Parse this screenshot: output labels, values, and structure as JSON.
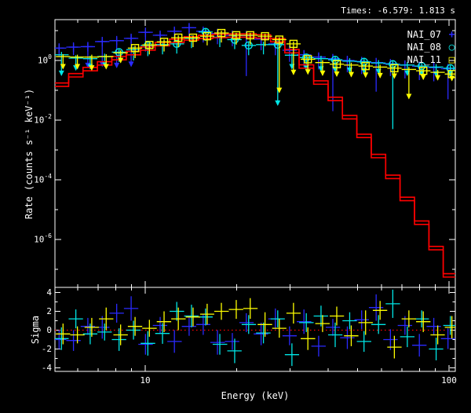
{
  "window": {
    "background": "#000000",
    "frame_color": "#ffffff"
  },
  "header": {
    "times_label": "Times: -6.579: 1.813 s"
  },
  "axes": {
    "x_title": "Energy (keV)",
    "rate_title": "Rate (counts s⁻¹ keV⁻¹)",
    "sigma_title": "Sigma",
    "x_major_tick_labels": [
      "10",
      "100"
    ],
    "rate_tick_exponents": [
      0,
      -2,
      -4,
      -6
    ],
    "sigma_tick_labels": [
      "4",
      "2",
      "0",
      "-2",
      "-4"
    ]
  },
  "legend": {
    "entries": [
      {
        "label": "NAI_07",
        "marker": "plus",
        "color": "#2a2aff"
      },
      {
        "label": "NAI_08",
        "marker": "circle",
        "color": "#00e6e6"
      },
      {
        "label": "NAI_11",
        "marker": "square",
        "color": "#ffff00"
      }
    ]
  },
  "chart_data": [
    {
      "type": "line",
      "title": "Times: -6.579: 1.813 s",
      "xlabel": "Energy (keV)",
      "ylabel": "Rate (counts s-1 keV-1)",
      "xscale": "log",
      "yscale": "log",
      "xlim": [
        5.0,
        105
      ],
      "ylim": [
        2.5e-08,
        23
      ],
      "x_major_ticks": [
        10,
        100
      ],
      "x_minor_ticks": [
        6,
        7,
        8,
        9,
        20,
        30,
        40,
        50,
        60,
        70,
        80,
        90
      ],
      "y_labeled_exponents": [
        0,
        -2,
        -4,
        -6
      ],
      "y_all_exponents": [
        1,
        0,
        -1,
        -2,
        -3,
        -4,
        -5,
        -6,
        -7
      ],
      "grid": false,
      "legend_position": "top-right",
      "energies_keV": [
        5.3,
        5.91,
        6.59,
        7.35,
        8.2,
        9.15,
        10.2,
        11.4,
        12.7,
        14.2,
        15.8,
        17.6,
        19.7,
        21.9,
        24.5,
        27.3,
        30.4,
        33.9,
        37.9,
        42.2,
        47.1,
        52.5,
        58.6,
        65.3,
        72.9,
        81.3,
        90.7,
        101
      ],
      "model": {
        "name": "folded-model",
        "color": "#ff0000",
        "values": [
          0.135,
          0.28,
          0.45,
          0.7,
          1.05,
          1.55,
          2.2,
          3.1,
          4.0,
          4.8,
          5.4,
          5.8,
          6.0,
          6.0,
          5.6,
          4.2,
          1.8,
          0.55,
          0.16,
          0.045,
          0.011,
          0.0026,
          0.00055,
          0.00011,
          2e-05,
          3.2e-06,
          4.5e-07,
          5.5e-08
        ],
        "second_curve_factor": 1.3
      },
      "series": [
        {
          "name": "NAI_07",
          "color": "#2a2aff",
          "marker": "plus",
          "up_factor": 1.3,
          "dx": -3,
          "values": [
            2.6,
            2.8,
            2.9,
            4.3,
            4.6,
            5.5,
            8.8,
            7.0,
            9.5,
            12.5,
            9.5,
            8.0,
            7.0,
            6.8,
            5.2,
            3.6,
            2.2,
            1.55,
            1.3,
            1.15,
            1.0,
            0.92,
            0.85,
            0.78,
            0.7,
            0.64,
            0.58,
            0.53
          ],
          "err_lo": [
            1.4,
            1.5,
            0.55,
            0.6,
            0.55,
            0.6,
            2.0,
            3.0,
            4.0,
            5.0,
            4.0,
            3.5,
            3.0,
            0.3,
            2.2,
            1.5,
            0.9,
            0.6,
            0.5,
            0.02,
            0.4,
            0.35,
            0.09,
            0.3,
            0.25,
            0.22,
            0.2,
            0.05
          ],
          "marker_on": [
            1,
            1,
            1,
            1,
            1,
            1,
            1,
            1,
            1,
            1,
            1,
            1,
            1,
            1,
            1,
            1,
            1,
            1,
            1,
            1,
            1,
            1,
            1,
            1,
            1,
            1,
            1,
            1
          ],
          "arrow": [
            0,
            0,
            1,
            1,
            1,
            1,
            0,
            0,
            0,
            0,
            0,
            0,
            0,
            0,
            0,
            0,
            0,
            0,
            0,
            0,
            0,
            0,
            0,
            0,
            0,
            0,
            0,
            0
          ]
        },
        {
          "name": "NAI_08",
          "color": "#00e6e6",
          "marker": "circle",
          "up_factor": 1.25,
          "dx": 0,
          "values": [
            1.55,
            1.2,
            1.15,
            1.35,
            1.9,
            2.3,
            3.2,
            3.4,
            3.6,
            5.5,
            9.0,
            6.0,
            5.0,
            3.2,
            3.4,
            3.4,
            1.5,
            1.25,
            1.15,
            1.05,
            0.95,
            0.9,
            0.82,
            0.75,
            0.7,
            0.65,
            0.6,
            0.55
          ],
          "err_lo": [
            0.3,
            0.45,
            0.5,
            0.6,
            0.9,
            1.0,
            1.4,
            1.6,
            1.7,
            2.6,
            4.5,
            2.8,
            2.4,
            1.5,
            1.6,
            0.03,
            0.5,
            0.45,
            0.42,
            0.4,
            0.38,
            0.36,
            0.34,
            0.005,
            0.3,
            0.29,
            0.28,
            0.27
          ],
          "marker_on": [
            0,
            0,
            0,
            0,
            1,
            0,
            1,
            0,
            1,
            0,
            1,
            0,
            1,
            1,
            0,
            1,
            0,
            1,
            0,
            1,
            0,
            1,
            0,
            1,
            0,
            1,
            0,
            1
          ],
          "arrow": [
            1,
            1,
            1,
            1,
            0,
            0,
            0,
            0,
            0,
            0,
            0,
            0,
            0,
            0,
            0,
            1,
            1,
            1,
            1,
            1,
            1,
            1,
            1,
            0,
            1,
            1,
            1,
            1
          ]
        },
        {
          "name": "NAI_11",
          "color": "#ffff00",
          "marker": "square",
          "up_factor": 1.2,
          "dx": 2,
          "values": [
            1.35,
            1.3,
            1.3,
            1.35,
            1.8,
            2.6,
            3.3,
            4.2,
            5.8,
            5.8,
            6.5,
            8.3,
            7.0,
            7.0,
            6.5,
            5.0,
            3.6,
            1.1,
            0.85,
            0.75,
            0.7,
            0.65,
            0.6,
            0.55,
            0.5,
            0.45,
            0.4,
            0.35
          ],
          "err_lo": [
            0.5,
            0.5,
            0.45,
            0.5,
            0.8,
            1.2,
            1.6,
            2.0,
            2.8,
            2.8,
            3.2,
            4.0,
            3.4,
            3.4,
            3.0,
            0.08,
            0.32,
            0.33,
            0.3,
            0.28,
            0.27,
            0.26,
            0.25,
            0.24,
            0.05,
            0.22,
            0.21,
            0.2
          ],
          "marker_on": [
            0,
            0,
            0,
            0,
            0,
            1,
            1,
            1,
            1,
            1,
            1,
            1,
            1,
            1,
            1,
            1,
            1,
            1,
            0,
            1,
            0,
            1,
            0,
            1,
            0,
            1,
            0,
            1
          ],
          "arrow": [
            1,
            1,
            1,
            1,
            1,
            0,
            0,
            0,
            0,
            0,
            0,
            0,
            0,
            0,
            0,
            1,
            1,
            1,
            1,
            1,
            1,
            1,
            1,
            1,
            1,
            1,
            1,
            1
          ]
        }
      ]
    },
    {
      "type": "scatter",
      "xlabel": "Energy (keV)",
      "ylabel": "Sigma",
      "ylim": [
        -4.5,
        4.5
      ],
      "y_ticks": [
        4,
        2,
        0,
        -2,
        -4
      ],
      "zero_line": {
        "style": "dotted",
        "color": "#ff0000",
        "value": 0
      },
      "series": [
        {
          "name": "NAI_07",
          "color": "#2a2aff",
          "dx": -3,
          "sigma": [
            -1.0,
            -1.1,
            0.4,
            0.3,
            1.8,
            2.3,
            -1.5,
            0.5,
            -1.2,
            0.4,
            0.6,
            -1.3,
            -1.2,
            0.8,
            -0.4,
            1.2,
            -0.6,
            0.9,
            -1.7,
            0.3,
            -0.8,
            1.1,
            2.4,
            -1.0,
            0.5,
            -1.6,
            0.4,
            -0.9
          ],
          "err": [
            1.0,
            1.1,
            0.9,
            1.2,
            1.0,
            1.3,
            1.1,
            0.9,
            1.2,
            1.0,
            1.1,
            1.3,
            0.9,
            1.0,
            1.2,
            1.1,
            1.0,
            1.3,
            1.1,
            0.9,
            1.2,
            1.0,
            1.4,
            1.1,
            1.0,
            1.2,
            0.9,
            1.1
          ]
        },
        {
          "name": "NAI_08",
          "color": "#00e6e6",
          "dx": 0,
          "sigma": [
            -0.9,
            1.2,
            -0.4,
            -0.2,
            -1.0,
            0.0,
            -1.4,
            -0.35,
            2.0,
            1.5,
            1.4,
            -1.5,
            -2.2,
            0.6,
            -0.3,
            1.2,
            -2.6,
            0.8,
            1.5,
            -0.5,
            1.0,
            -1.2,
            0.6,
            2.8,
            -0.7,
            1.2,
            -2.0,
            0.5
          ],
          "err": [
            1.2,
            1.0,
            1.1,
            0.9,
            1.2,
            1.0,
            1.3,
            1.1,
            1.0,
            1.2,
            0.9,
            1.1,
            1.3,
            1.0,
            1.1,
            0.9,
            1.2,
            1.0,
            1.1,
            1.3,
            0.9,
            1.1,
            1.0,
            1.5,
            1.1,
            0.9,
            1.2,
            1.0
          ]
        },
        {
          "name": "NAI_11",
          "color": "#ffff00",
          "dx": 2,
          "sigma": [
            -0.4,
            -0.5,
            0.3,
            1.2,
            -0.5,
            0.4,
            0.2,
            0.9,
            1.2,
            1.4,
            1.7,
            2.0,
            2.2,
            2.3,
            0.6,
            0.2,
            1.8,
            -0.9,
            0.7,
            1.5,
            -0.6,
            0.8,
            2.1,
            -1.8,
            1.2,
            0.9,
            -0.5,
            0.3
          ],
          "err": [
            1.1,
            0.9,
            1.0,
            1.2,
            1.1,
            1.0,
            0.9,
            1.1,
            1.2,
            1.0,
            1.1,
            0.9,
            1.0,
            1.1,
            1.3,
            1.0,
            1.1,
            1.2,
            0.9,
            1.0,
            1.1,
            1.3,
            1.0,
            1.2,
            0.9,
            1.1,
            1.0,
            1.2
          ]
        }
      ]
    }
  ]
}
